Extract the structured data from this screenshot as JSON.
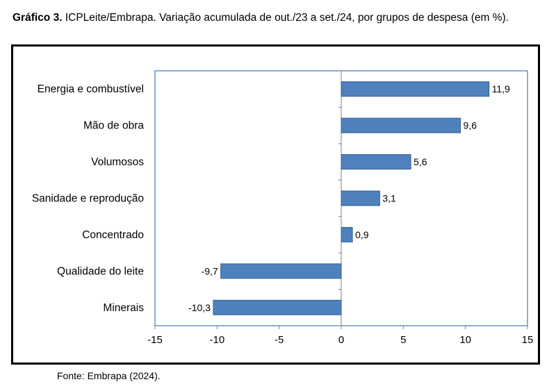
{
  "caption": {
    "label": "Gráfico 3.",
    "text": "ICPLeite/Embrapa. Variação acumulada de out./23 a set./24, por grupos de despesa (em %)."
  },
  "source": "Fonte: Embrapa (2024).",
  "colors": {
    "bar": "#4f81bd",
    "bar_stroke": "#2f5d8f",
    "plot_border": "#4f81bd"
  },
  "chart_data": {
    "type": "bar",
    "orientation": "horizontal",
    "title": "",
    "xlabel": "",
    "ylabel": "",
    "categories": [
      "Energia e combustível",
      "Mão de obra",
      "Volumosos",
      "Sanidade e reprodução",
      "Concentrado",
      "Qualidade do leite",
      "Minerais"
    ],
    "values": [
      11.9,
      9.6,
      5.6,
      3.1,
      0.9,
      -9.7,
      -10.3
    ],
    "value_labels": [
      "11,9",
      "9,6",
      "5,6",
      "3,1",
      "0,9",
      "-9,7",
      "-10,3"
    ],
    "xlim": [
      -15,
      15
    ],
    "xticks": [
      -15,
      -10,
      -5,
      0,
      5,
      10,
      15
    ],
    "xtick_labels": [
      "-15",
      "-10",
      "-5",
      "0",
      "5",
      "10",
      "15"
    ],
    "grid": false,
    "legend": "none"
  }
}
